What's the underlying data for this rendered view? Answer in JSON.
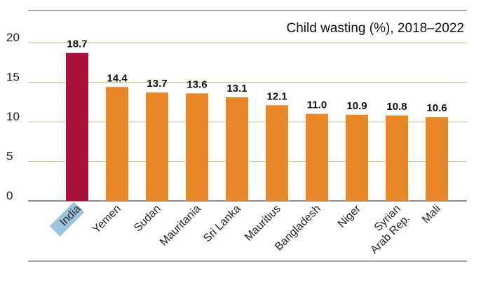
{
  "chart_data": {
    "type": "bar",
    "title": "Child wasting (%), 2018–2022",
    "categories": [
      "India",
      "Yemen",
      "Sudan",
      "Mauritania",
      "Sri Lanka",
      "Mauritius",
      "Bangladesh",
      "Niger",
      "Syrian Arab Rep.",
      "Mali"
    ],
    "category_lines": [
      [
        "India"
      ],
      [
        "Yemen"
      ],
      [
        "Sudan"
      ],
      [
        "Mauritania"
      ],
      [
        "Sri Lanka"
      ],
      [
        "Mauritius"
      ],
      [
        "Bangladesh"
      ],
      [
        "Niger"
      ],
      [
        "Syrian",
        "Arab Rep."
      ],
      [
        "Mali"
      ]
    ],
    "values": [
      18.7,
      14.4,
      13.7,
      13.6,
      13.1,
      12.1,
      11.0,
      10.9,
      10.8,
      10.6
    ],
    "value_labels": [
      "18.7",
      "14.4",
      "13.7",
      "13.6",
      "13.1",
      "12.1",
      "11.0",
      "10.9",
      "10.8",
      "10.6"
    ],
    "ylim": [
      0,
      20
    ],
    "yticks": [
      "0",
      "5",
      "10",
      "15",
      "20"
    ],
    "xlabel": "",
    "ylabel": "",
    "grid": true,
    "highlight_category": "India",
    "colors": {
      "default_bar": "#E8862A",
      "highlight_bar": "#A8123A",
      "highlight_label_bg": "#9CC4DC",
      "grid": "#B5CE8C",
      "rule": "#8C8C8C"
    }
  }
}
